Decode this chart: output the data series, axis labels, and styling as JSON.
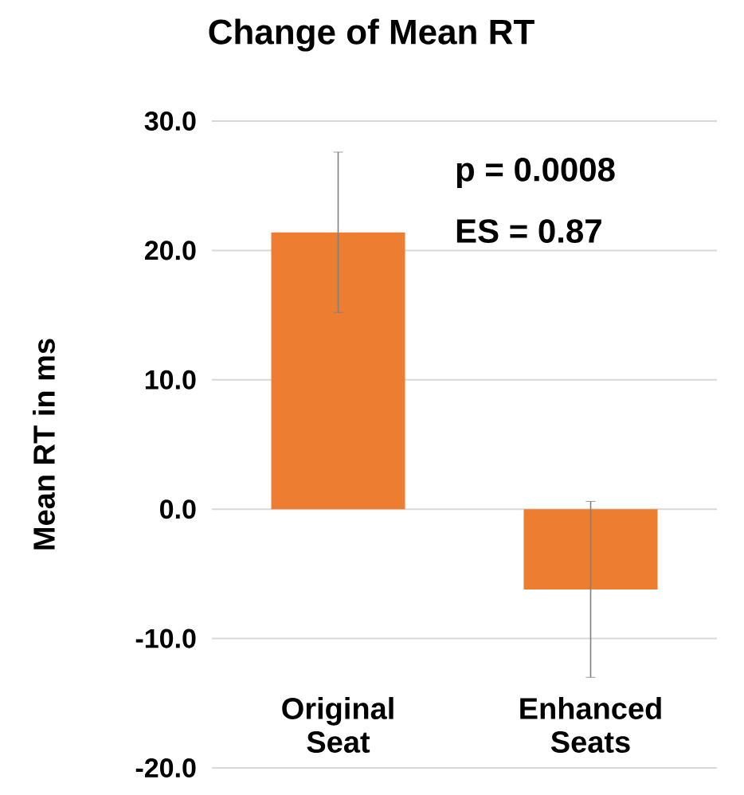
{
  "chart_data": {
    "type": "bar",
    "title": "Change of Mean RT",
    "ylabel": "Mean RT in ms",
    "categories": [
      "Original Seat",
      "Enhanced Seats"
    ],
    "values": [
      21.4,
      -6.2
    ],
    "errors": [
      6.2,
      6.8
    ],
    "color": "#ed7d31",
    "ylim": [
      -20,
      30
    ],
    "yticks": [
      {
        "value": -20,
        "label": "-20.0"
      },
      {
        "value": -10,
        "label": "-10.0"
      },
      {
        "value": 0,
        "label": "0.0"
      },
      {
        "value": 10,
        "label": "10.0"
      },
      {
        "value": 20,
        "label": "20.0"
      },
      {
        "value": 30,
        "label": "30.0"
      }
    ],
    "grid": "y",
    "annotations": [
      "p = 0.0008",
      "ES = 0.87"
    ]
  }
}
